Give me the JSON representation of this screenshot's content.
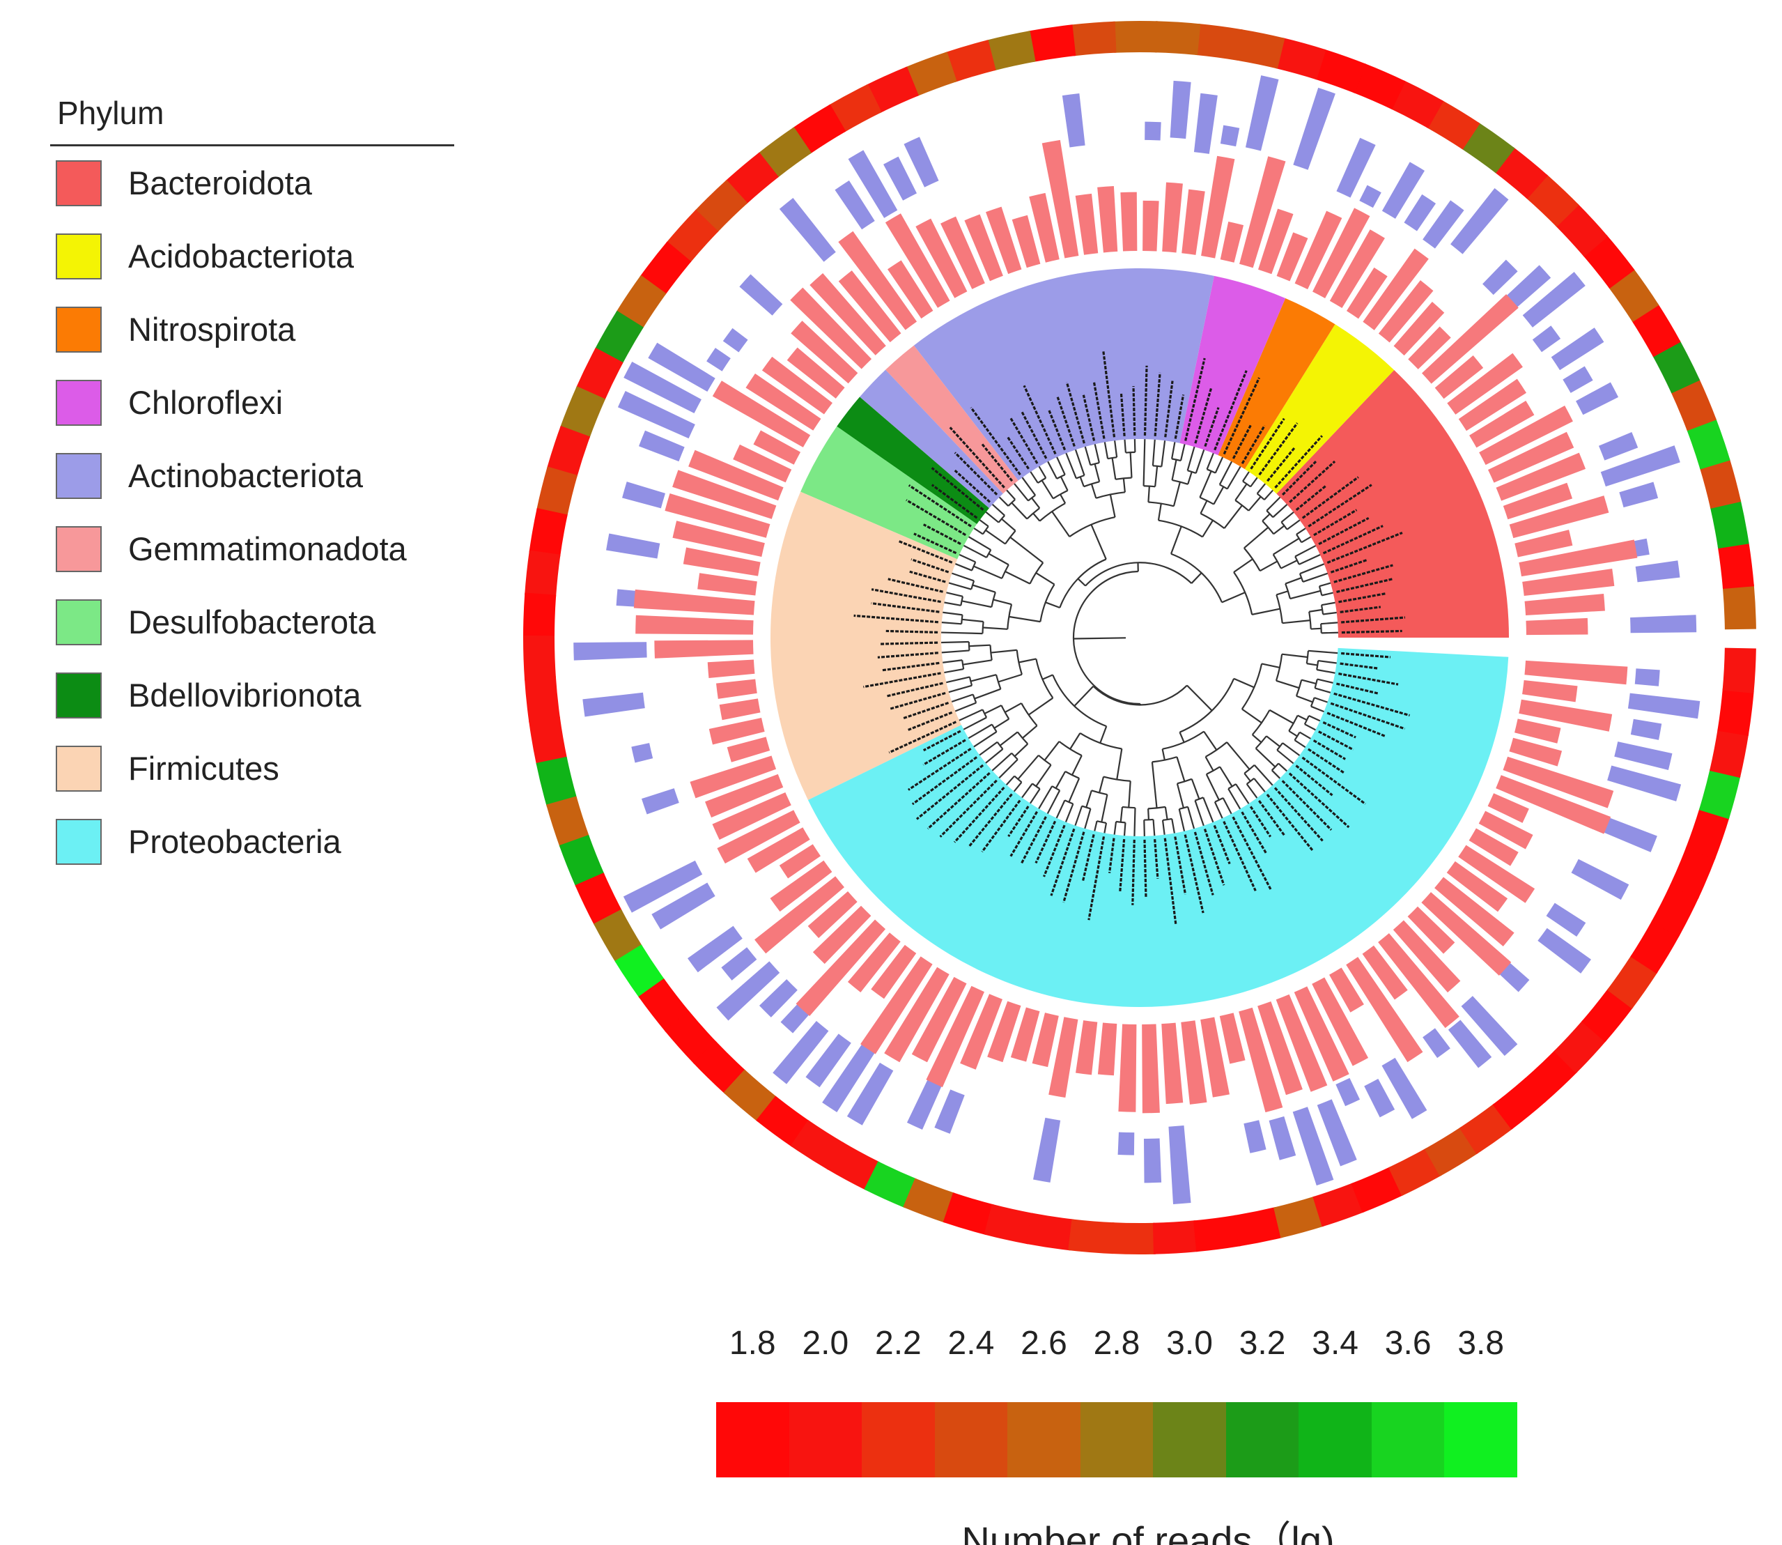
{
  "legend": {
    "title": "Phylum",
    "items": [
      {
        "label": "Bacteroidota",
        "color": "#f45a5a"
      },
      {
        "label": "Acidobacteriota",
        "color": "#f4f404"
      },
      {
        "label": "Nitrospirota",
        "color": "#fb7b04"
      },
      {
        "label": "Chloroflexi",
        "color": "#dc5ce8"
      },
      {
        "label": "Actinobacteriota",
        "color": "#9c9ce8"
      },
      {
        "label": "Gemmatimonadota",
        "color": "#f7989a"
      },
      {
        "label": "Desulfobacterota",
        "color": "#7ce886"
      },
      {
        "label": "Bdellovibrionota",
        "color": "#0c8c14"
      },
      {
        "label": "Firmicutes",
        "color": "#fbd4b4"
      },
      {
        "label": "Proteobacteria",
        "color": "#6cf0f4"
      }
    ]
  },
  "colorbar": {
    "ticks": [
      "1.8",
      "2.0",
      "2.2",
      "2.4",
      "2.6",
      "2.8",
      "3.0",
      "3.2",
      "3.4",
      "3.6",
      "3.8"
    ],
    "colors": [
      "#ff0808",
      "#f81410",
      "#ec3010",
      "#d84a10",
      "#c86210",
      "#a07814",
      "#6c8418",
      "#1c9c18",
      "#10b418",
      "#18d420",
      "#10f020"
    ],
    "axis_label": "Number of reads（lg)"
  },
  "tree": {
    "phylum_order": [
      "Bacteroidota",
      "Acidobacteriota",
      "Nitrospirota",
      "Chloroflexi",
      "Actinobacteriota",
      "Gemmatimonadota",
      "Actinobacteriota",
      "Bdellovibrionota",
      "Desulfobacterota",
      "Firmicutes",
      "Proteobacteria"
    ],
    "sector_leaf_counts": [
      16,
      4,
      3,
      4,
      17,
      2,
      2,
      2,
      4,
      17,
      52
    ],
    "bar_tracks": {
      "inner_color": "#f6797c",
      "outer_color": "#9190e4"
    }
  }
}
